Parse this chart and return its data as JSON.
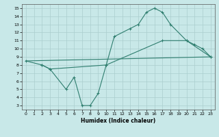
{
  "line1_x": [
    0,
    2,
    3,
    5,
    6,
    7,
    8,
    9,
    10,
    11,
    13,
    14,
    15,
    16,
    17,
    18,
    20,
    21,
    22,
    23
  ],
  "line1_y": [
    8.5,
    8.0,
    7.5,
    5.0,
    6.5,
    3.0,
    3.0,
    4.5,
    8.0,
    11.5,
    12.5,
    13.0,
    14.5,
    15.0,
    14.5,
    13.0,
    11.0,
    10.5,
    10.0,
    9.0
  ],
  "line2_x": [
    0,
    23
  ],
  "line2_y": [
    8.5,
    9.0
  ],
  "line3_x": [
    2,
    3,
    10,
    17,
    20,
    23
  ],
  "line3_y": [
    8.0,
    7.5,
    8.0,
    11.0,
    11.0,
    9.0
  ],
  "line_color": "#2e7d6e",
  "bg_color": "#c8e8e8",
  "grid_color": "#aacece",
  "xlabel": "Humidex (Indice chaleur)",
  "xlim": [
    -0.5,
    23.5
  ],
  "ylim": [
    2.5,
    15.5
  ],
  "xticks": [
    0,
    1,
    2,
    3,
    4,
    5,
    6,
    7,
    8,
    9,
    10,
    11,
    12,
    13,
    14,
    15,
    16,
    17,
    18,
    19,
    20,
    21,
    22,
    23
  ],
  "yticks": [
    3,
    4,
    5,
    6,
    7,
    8,
    9,
    10,
    11,
    12,
    13,
    14,
    15
  ]
}
